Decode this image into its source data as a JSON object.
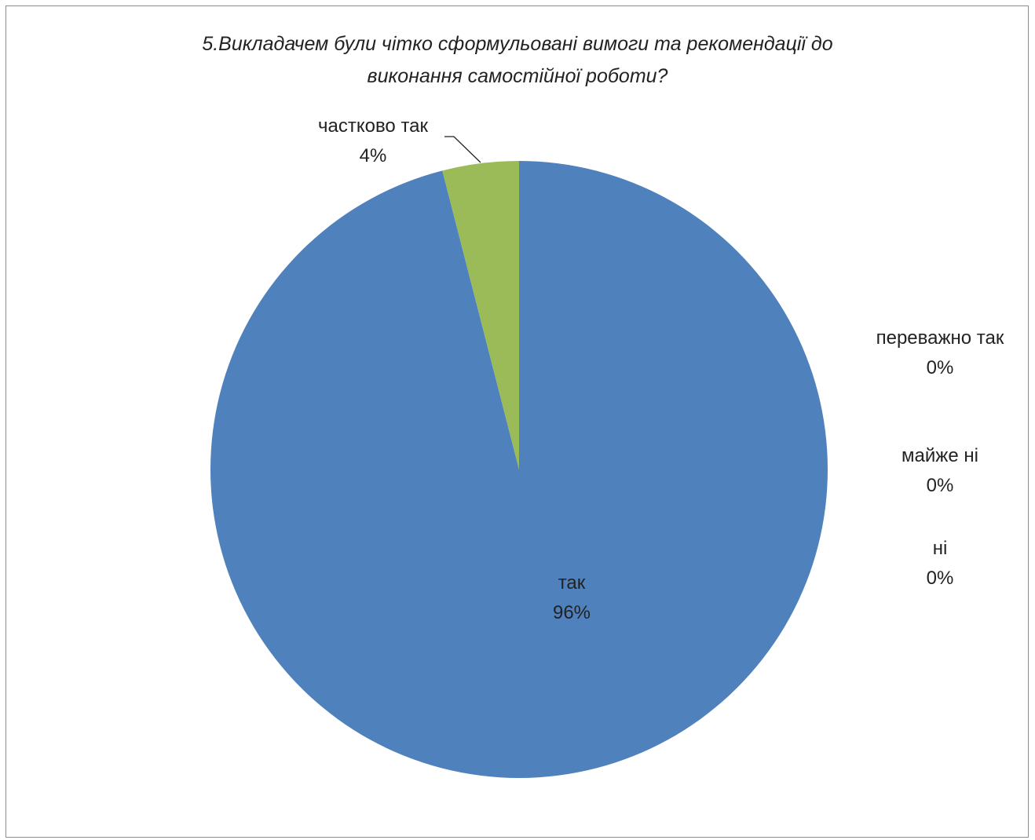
{
  "chart_data": {
    "type": "pie",
    "title": "5.Викладачем були чітко сформульовані вимоги та рекомендації до виконання самостійної роботи?",
    "title_lines": [
      "5.Викладачем були чітко сформульовані вимоги та рекомендації до",
      "виконання самостійної роботи?"
    ],
    "slices": [
      {
        "label": "так",
        "value": 96,
        "display": "96%",
        "color": "#4f81bd"
      },
      {
        "label": "переважно так",
        "value": 0,
        "display": "0%",
        "color": "#c0504d"
      },
      {
        "label": "майже ні",
        "value": 0,
        "display": "0%",
        "color": "#8064a2"
      },
      {
        "label": "ні",
        "value": 0,
        "display": "0%",
        "color": "#4bacc6"
      },
      {
        "label": "частково так",
        "value": 4,
        "display": "4%",
        "color": "#9bbb59"
      }
    ],
    "legend": "none"
  }
}
